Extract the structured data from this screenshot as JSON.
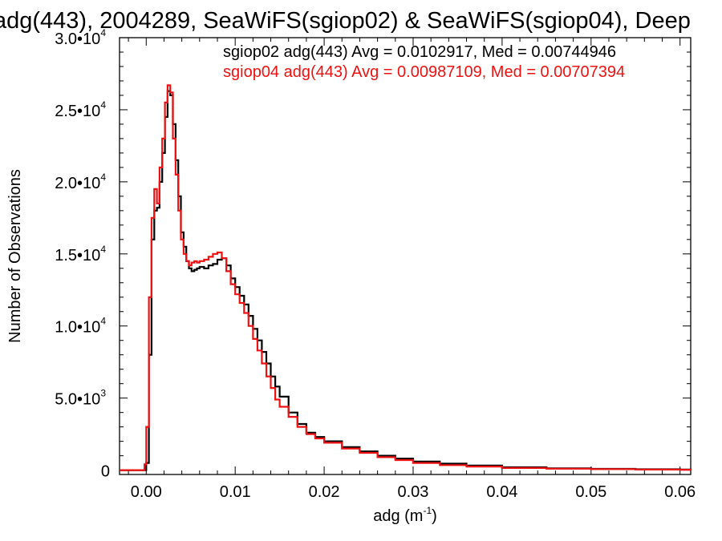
{
  "chart_data": {
    "type": "line",
    "title": "adg(443), 2004289, SeaWiFS(sgiop02) & SeaWiFS(sgiop04), Deep",
    "xlabel": "adg (m",
    "xlabel_sup": "-1",
    "xlabel_end": ")",
    "ylabel": "Number of Observations",
    "xlim": [
      -0.003,
      0.0612
    ],
    "ylim": [
      -300,
      30000
    ],
    "x_ticks": [
      {
        "value": 0.0,
        "label": "0.00"
      },
      {
        "value": 0.01,
        "label": "0.01"
      },
      {
        "value": 0.02,
        "label": "0.02"
      },
      {
        "value": 0.03,
        "label": "0.03"
      },
      {
        "value": 0.04,
        "label": "0.04"
      },
      {
        "value": 0.05,
        "label": "0.05"
      },
      {
        "value": 0.06,
        "label": "0.06"
      }
    ],
    "y_ticks": [
      {
        "value": 0,
        "mant": "0",
        "exp": ""
      },
      {
        "value": 5000,
        "mant": "5.0•10",
        "exp": "3"
      },
      {
        "value": 10000,
        "mant": "1.0•10",
        "exp": "4"
      },
      {
        "value": 15000,
        "mant": "1.5•10",
        "exp": "4"
      },
      {
        "value": 20000,
        "mant": "2.0•10",
        "exp": "4"
      },
      {
        "value": 25000,
        "mant": "2.5•10",
        "exp": "4"
      },
      {
        "value": 30000,
        "mant": "3.0•10",
        "exp": "4"
      }
    ],
    "legend_placement": "top-right",
    "grid": false,
    "series": [
      {
        "name": "sgiop02 adg(443) Avg = 0.0102917, Med = 0.00744946",
        "color": "#000000",
        "x": [
          -0.003,
          -0.0002,
          0.0,
          0.0003,
          0.0006,
          0.0009,
          0.0012,
          0.0015,
          0.0018,
          0.0021,
          0.0024,
          0.0027,
          0.003,
          0.0033,
          0.0036,
          0.0039,
          0.0042,
          0.0045,
          0.0048,
          0.0051,
          0.0054,
          0.0057,
          0.006,
          0.0065,
          0.007,
          0.0075,
          0.008,
          0.0085,
          0.009,
          0.0095,
          0.01,
          0.0105,
          0.011,
          0.0115,
          0.012,
          0.0125,
          0.013,
          0.0135,
          0.014,
          0.0145,
          0.015,
          0.016,
          0.017,
          0.018,
          0.019,
          0.02,
          0.022,
          0.024,
          0.026,
          0.028,
          0.03,
          0.033,
          0.036,
          0.04,
          0.045,
          0.05,
          0.055,
          0.06,
          0.0612
        ],
        "values": [
          0,
          0,
          500,
          8000,
          16000,
          18000,
          18200,
          20000,
          22000,
          24500,
          26300,
          26000,
          24000,
          21500,
          19000,
          16500,
          15500,
          14500,
          14000,
          13800,
          13900,
          14000,
          14100,
          14000,
          14200,
          14300,
          14600,
          14700,
          14200,
          13300,
          12700,
          12100,
          11500,
          10700,
          9800,
          9000,
          8200,
          7400,
          6500,
          5800,
          5100,
          4000,
          3200,
          2600,
          2300,
          2000,
          1600,
          1300,
          1000,
          800,
          600,
          450,
          320,
          200,
          130,
          90,
          60,
          40,
          30
        ]
      },
      {
        "name": "sgiop04 adg(443) Avg = 0.00987109, Med = 0.00707394",
        "color": "#ee1111",
        "x": [
          -0.003,
          -0.0004,
          -0.0002,
          0.0,
          0.0003,
          0.0006,
          0.0009,
          0.0012,
          0.0015,
          0.0018,
          0.0021,
          0.0024,
          0.0027,
          0.003,
          0.0033,
          0.0036,
          0.0039,
          0.0042,
          0.0045,
          0.0048,
          0.0051,
          0.0054,
          0.0057,
          0.006,
          0.0065,
          0.007,
          0.0075,
          0.008,
          0.0085,
          0.009,
          0.0095,
          0.01,
          0.0105,
          0.011,
          0.0115,
          0.012,
          0.0125,
          0.013,
          0.0135,
          0.014,
          0.0145,
          0.015,
          0.016,
          0.017,
          0.018,
          0.019,
          0.02,
          0.022,
          0.024,
          0.026,
          0.028,
          0.03,
          0.033,
          0.036,
          0.04,
          0.045,
          0.05,
          0.055,
          0.06,
          0.0612
        ],
        "values": [
          0,
          0,
          400,
          3000,
          12000,
          17500,
          19500,
          18500,
          21000,
          23000,
          25500,
          26700,
          26200,
          23000,
          20500,
          18000,
          16000,
          15000,
          14500,
          14200,
          14400,
          14500,
          14400,
          14500,
          14600,
          14800,
          15000,
          15100,
          14700,
          13800,
          12900,
          12200,
          11600,
          10900,
          10000,
          9100,
          8300,
          7400,
          6500,
          5700,
          4900,
          4400,
          3700,
          3000,
          2500,
          2200,
          1900,
          1500,
          1200,
          900,
          700,
          500,
          350,
          250,
          150,
          100,
          70,
          45,
          30,
          25
        ]
      }
    ]
  }
}
